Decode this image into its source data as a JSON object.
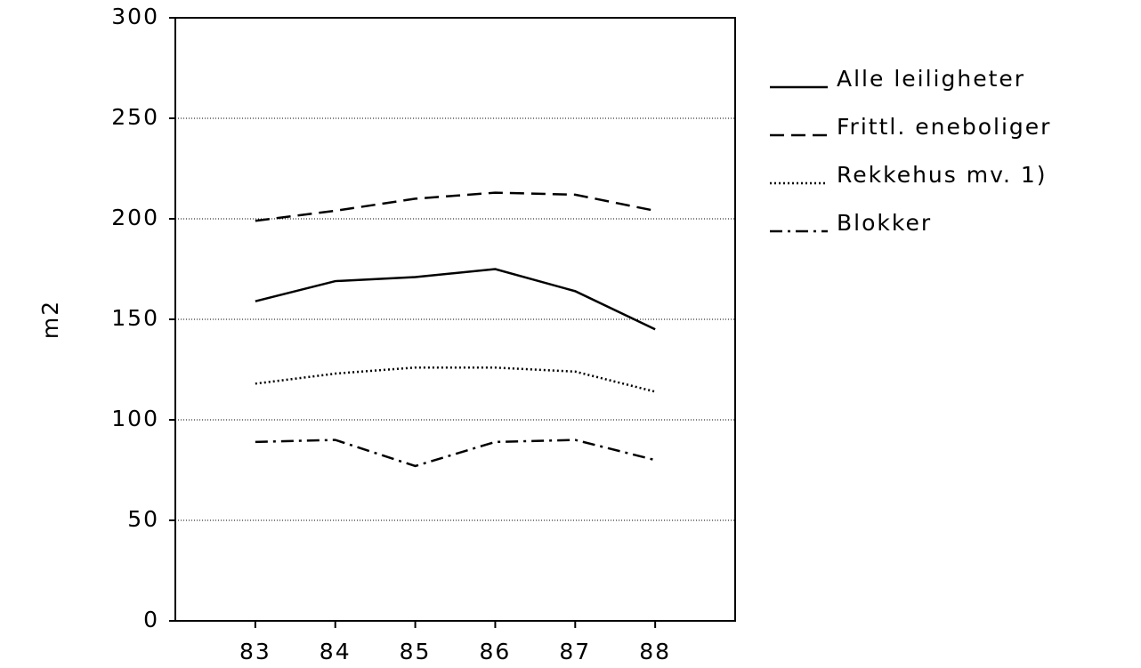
{
  "chart_data": {
    "type": "line",
    "y_label": "m2",
    "categories": [
      "83",
      "84",
      "85",
      "86",
      "87",
      "88"
    ],
    "series": [
      {
        "name": "Alle leiligheter",
        "color": "#000000",
        "dash": "solid",
        "values": [
          159,
          169,
          171,
          175,
          164,
          145
        ]
      },
      {
        "name": "Frittl. eneboliger",
        "color": "#000000",
        "dash": "dashed",
        "values": [
          199,
          204,
          210,
          213,
          212,
          204
        ]
      },
      {
        "name": "Rekkehus mv. 1)",
        "color": "#000000",
        "dash": "dotted",
        "values": [
          118,
          123,
          126,
          126,
          124,
          114
        ]
      },
      {
        "name": "Blokker",
        "color": "#000000",
        "dash": "dashdot",
        "values": [
          89,
          90,
          77,
          89,
          90,
          80
        ]
      }
    ],
    "ylim": [
      0,
      300
    ],
    "yticks": [
      0,
      50,
      100,
      150,
      200,
      250,
      300
    ],
    "grid": true,
    "legend": "right"
  }
}
